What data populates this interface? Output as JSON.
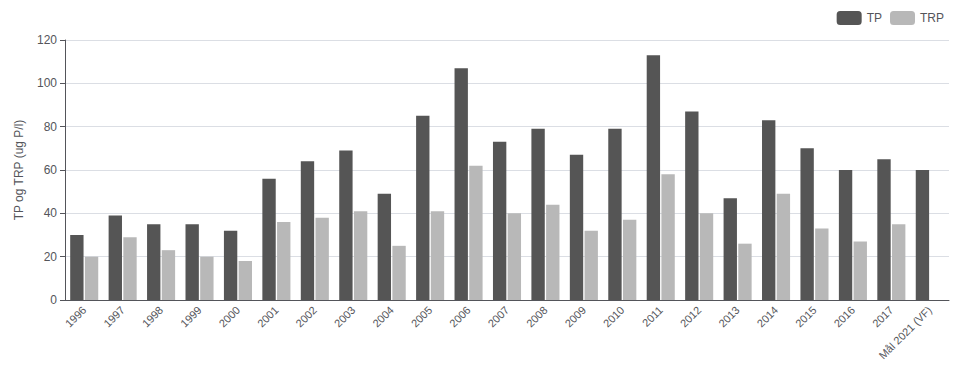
{
  "chart_data": {
    "type": "bar",
    "categories": [
      "1996",
      "1997",
      "1998",
      "1999",
      "2000",
      "2001",
      "2002",
      "2003",
      "2004",
      "2005",
      "2006",
      "2007",
      "2008",
      "2009",
      "2010",
      "2011",
      "2012",
      "2013",
      "2014",
      "2015",
      "2016",
      "2017",
      "Mål 2021 (VF)"
    ],
    "series": [
      {
        "name": "TP",
        "color": "#555555",
        "values": [
          30,
          39,
          35,
          35,
          32,
          56,
          64,
          69,
          49,
          85,
          107,
          73,
          79,
          67,
          79,
          113,
          87,
          47,
          83,
          70,
          60,
          65,
          60
        ]
      },
      {
        "name": "TRP",
        "color": "#b8b8b8",
        "values": [
          20,
          29,
          23,
          20,
          18,
          36,
          38,
          41,
          25,
          41,
          62,
          40,
          44,
          32,
          37,
          58,
          40,
          26,
          49,
          33,
          27,
          35,
          null
        ]
      }
    ],
    "ylabel": "TP og TRP (ug P/l)",
    "ylim": [
      0,
      120
    ],
    "yticks": [
      0,
      20,
      40,
      60,
      80,
      100,
      120
    ],
    "grid": true,
    "legend": "upper right"
  }
}
